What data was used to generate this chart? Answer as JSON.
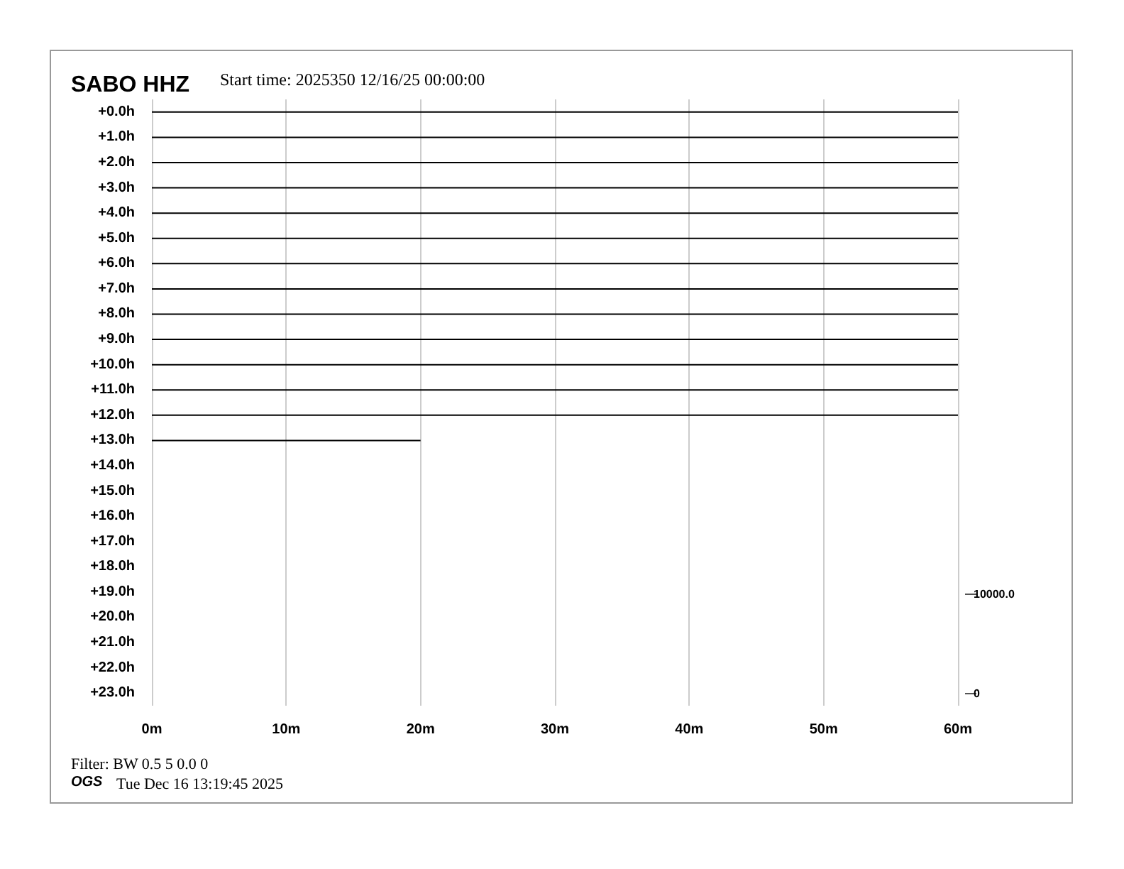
{
  "chart_data": {
    "type": "line",
    "title": "SABO HHZ",
    "subtitle": "Start time: 2025350 12/16/25 00:00:00",
    "annotations": [
      "Filter: BW 0.5 5 0.0 0",
      "OGS",
      "Tue Dec 16 13:19:45 2025"
    ],
    "xlim": [
      0,
      60
    ],
    "xticks": [
      {
        "value": 0,
        "label": "0m"
      },
      {
        "value": 10,
        "label": "10m"
      },
      {
        "value": 20,
        "label": "20m"
      },
      {
        "value": 30,
        "label": "30m"
      },
      {
        "value": 40,
        "label": "40m"
      },
      {
        "value": 50,
        "label": "50m"
      },
      {
        "value": 60,
        "label": "60m"
      }
    ],
    "ylim": [
      23.5,
      -0.5
    ],
    "yticks": [
      {
        "value": 0,
        "label": "+0.0h"
      },
      {
        "value": 1,
        "label": "+1.0h"
      },
      {
        "value": 2,
        "label": "+2.0h"
      },
      {
        "value": 3,
        "label": "+3.0h"
      },
      {
        "value": 4,
        "label": "+4.0h"
      },
      {
        "value": 5,
        "label": "+5.0h"
      },
      {
        "value": 6,
        "label": "+6.0h"
      },
      {
        "value": 7,
        "label": "+7.0h"
      },
      {
        "value": 8,
        "label": "+8.0h"
      },
      {
        "value": 9,
        "label": "+9.0h"
      },
      {
        "value": 10,
        "label": "+10.0h"
      },
      {
        "value": 11,
        "label": "+11.0h"
      },
      {
        "value": 12,
        "label": "+12.0h"
      },
      {
        "value": 13,
        "label": "+13.0h"
      },
      {
        "value": 14,
        "label": "+14.0h"
      },
      {
        "value": 15,
        "label": "+15.0h"
      },
      {
        "value": 16,
        "label": "+16.0h"
      },
      {
        "value": 17,
        "label": "+17.0h"
      },
      {
        "value": 18,
        "label": "+18.0h"
      },
      {
        "value": 19,
        "label": "+19.0h"
      },
      {
        "value": 20,
        "label": "+20.0h"
      },
      {
        "value": 21,
        "label": "+21.0h"
      },
      {
        "value": 22,
        "label": "+22.0h"
      },
      {
        "value": 23,
        "label": "+23.0h"
      }
    ],
    "y2lim": [
      -1250,
      60000
    ],
    "y2ticks": [
      {
        "value": 0,
        "label": "0"
      },
      {
        "value": 10000,
        "label": "10000.0"
      }
    ],
    "grid": "x",
    "series": [
      {
        "color": "#000000",
        "x": [
          0,
          60
        ],
        "values": [
          0,
          0
        ]
      },
      {
        "color": "#000000",
        "x": [
          0,
          60
        ],
        "values": [
          1,
          1
        ]
      },
      {
        "color": "#000000",
        "x": [
          0,
          60
        ],
        "values": [
          2,
          2
        ]
      },
      {
        "color": "#000000",
        "x": [
          0,
          60
        ],
        "values": [
          3,
          3
        ]
      },
      {
        "color": "#000000",
        "x": [
          0,
          60
        ],
        "values": [
          4,
          4
        ]
      },
      {
        "color": "#000000",
        "x": [
          0,
          60
        ],
        "values": [
          5,
          5
        ]
      },
      {
        "color": "#000000",
        "x": [
          0,
          60
        ],
        "values": [
          6,
          6
        ]
      },
      {
        "color": "#000000",
        "x": [
          0,
          60
        ],
        "values": [
          7,
          7
        ]
      },
      {
        "color": "#000000",
        "x": [
          0,
          60
        ],
        "values": [
          8,
          8
        ]
      },
      {
        "color": "#000000",
        "x": [
          0,
          60
        ],
        "values": [
          9,
          9
        ]
      },
      {
        "color": "#000000",
        "x": [
          0,
          60
        ],
        "values": [
          10,
          10
        ]
      },
      {
        "color": "#000000",
        "x": [
          0,
          60
        ],
        "values": [
          11,
          11
        ]
      },
      {
        "color": "#000000",
        "x": [
          0,
          60
        ],
        "values": [
          12,
          12
        ]
      },
      {
        "color": "#000000",
        "x": [
          0,
          20
        ],
        "values": [
          13,
          13
        ]
      }
    ]
  }
}
